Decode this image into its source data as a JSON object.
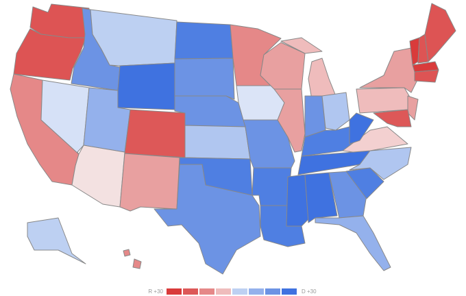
{
  "legend": {
    "low_label": "R +30",
    "high_label": "D +30",
    "colors": [
      "#d93b3b",
      "#dd5858",
      "#e58888",
      "#efbcbc",
      "#bdd0f2",
      "#94b1ec",
      "#6c93e4",
      "#3f72e0"
    ]
  },
  "map": {
    "region_colors": [
      "#dd5454",
      "#dd5454",
      "#e58888",
      "#d6e1f7",
      "#6c93e4",
      "#bdd0f2",
      "#3f72e0",
      "#94b1ec",
      "#dd5858",
      "#f3e1e1",
      "#e8a0a0",
      "#4f7fe2",
      "#6c93e4",
      "#6c93e4",
      "#b0c6f0",
      "#4f7fe2",
      "#6c93e4",
      "#e58888",
      "#dbe4f7",
      "#6c93e4",
      "#4f7fe2",
      "#4f7fe2",
      "#e8a0a0",
      "#e8a0a0",
      "#efbcbc",
      "#efbcbc",
      "#6c93e4",
      "#b0c6f0",
      "#4f7fe2",
      "#3f72e0",
      "#3f72e0",
      "#3f72e0",
      "#6c93e4",
      "#94b1ec",
      "#4f7fe2",
      "#b0c6f0",
      "#f3d0d0",
      "#3f72e0",
      "#efbcbc",
      "#e8a0a0",
      "#e8a0a0",
      "#dd5858",
      "#d93b3b",
      "#dd5454",
      "#dd5454",
      "#d93b3b",
      "#dd5454",
      "#bdd0f2",
      "#e58888",
      "#e58888"
    ]
  }
}
